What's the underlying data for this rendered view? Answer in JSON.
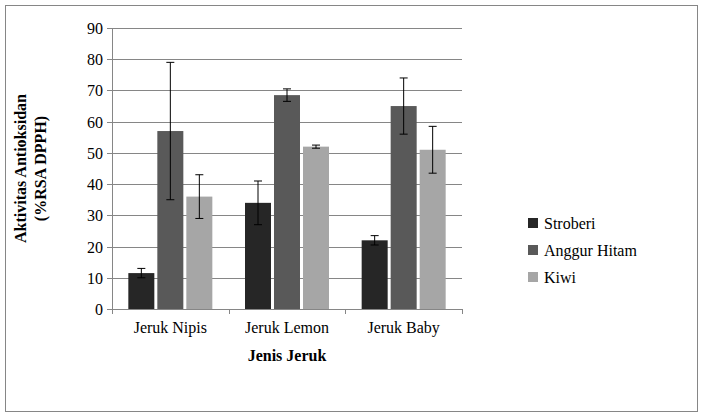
{
  "chart_data": {
    "type": "bar",
    "y_label": [
      "Aktivitas Antioksidan",
      "(%RSA DPPH)"
    ],
    "x_label": "Jenis Jeruk",
    "categories": [
      "Jeruk Nipis",
      "Jeruk Lemon",
      "Jeruk Baby"
    ],
    "series": [
      {
        "name": "Stroberi",
        "color": "#262626",
        "values": [
          11.5,
          34,
          22
        ],
        "errors": [
          1.5,
          7,
          1.5
        ]
      },
      {
        "name": "Anggur Hitam",
        "color": "#595959",
        "values": [
          57,
          68.5,
          65
        ],
        "errors": [
          22,
          2,
          9
        ]
      },
      {
        "name": "Kiwi",
        "color": "#a6a6a6",
        "values": [
          36,
          52,
          51
        ],
        "errors": [
          7,
          0.5,
          7.5
        ]
      }
    ],
    "ylim": [
      0,
      90
    ],
    "yticks": [
      0,
      10,
      20,
      30,
      40,
      50,
      60,
      70,
      80,
      90
    ],
    "grid": true,
    "legend": "right"
  }
}
